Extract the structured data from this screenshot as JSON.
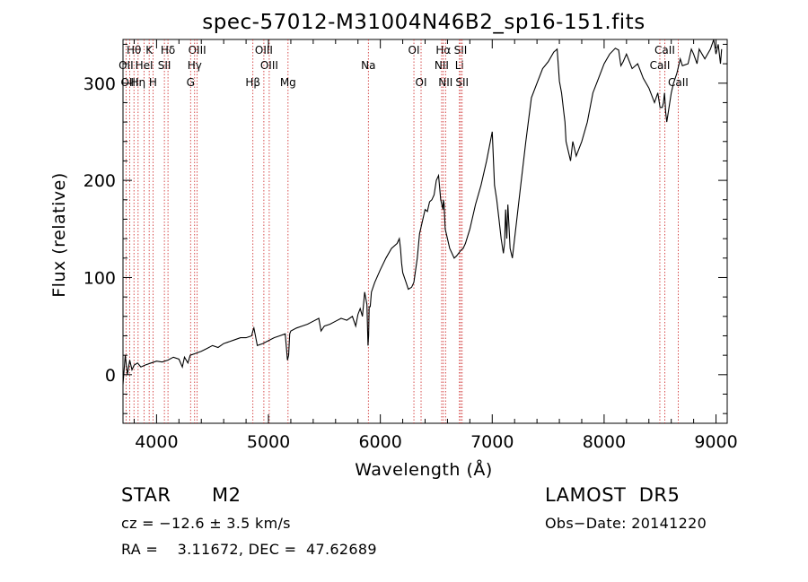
{
  "chart_data": {
    "type": "line",
    "title": "spec-57012-M31004N46B2_sp16-151.fits",
    "xlabel": "Wavelength (Å)",
    "ylabel": "Flux (relative)",
    "xlim": [
      3700,
      9100
    ],
    "ylim": [
      -50,
      345
    ],
    "xticks": [
      4000,
      5000,
      6000,
      7000,
      8000,
      9000
    ],
    "yticks": [
      0,
      100,
      200,
      300
    ],
    "grid": false,
    "series": [
      {
        "x": [
          3700,
          3720,
          3740,
          3760,
          3780,
          3800,
          3830,
          3860,
          3900,
          3950,
          4000,
          4050,
          4100,
          4150,
          4200,
          4230,
          4250,
          4280,
          4300,
          4350,
          4400,
          4450,
          4500,
          4550,
          4600,
          4650,
          4700,
          4750,
          4800,
          4850,
          4860,
          4870,
          4880,
          4900,
          4950,
          5000,
          5050,
          5100,
          5150,
          5170,
          5180,
          5190,
          5200,
          5250,
          5300,
          5350,
          5400,
          5450,
          5470,
          5500,
          5550,
          5600,
          5650,
          5700,
          5750,
          5780,
          5800,
          5820,
          5840,
          5860,
          5880,
          5890,
          5895,
          5900,
          5910,
          5920,
          5950,
          6000,
          6050,
          6100,
          6150,
          6170,
          6180,
          6190,
          6200,
          6230,
          6250,
          6280,
          6300,
          6330,
          6350,
          6380,
          6400,
          6420,
          6440,
          6460,
          6480,
          6500,
          6520,
          6540,
          6560,
          6563,
          6570,
          6580,
          6600,
          6620,
          6640,
          6660,
          6680,
          6700,
          6720,
          6740,
          6760,
          6800,
          6850,
          6900,
          6950,
          7000,
          7020,
          7040,
          7060,
          7080,
          7100,
          7110,
          7120,
          7130,
          7140,
          7160,
          7180,
          7200,
          7250,
          7300,
          7350,
          7400,
          7450,
          7500,
          7550,
          7580,
          7600,
          7620,
          7640,
          7650,
          7660,
          7680,
          7700,
          7720,
          7750,
          7800,
          7850,
          7900,
          7950,
          8000,
          8050,
          8100,
          8130,
          8150,
          8170,
          8200,
          8250,
          8300,
          8350,
          8400,
          8450,
          8480,
          8500,
          8520,
          8530,
          8540,
          8550,
          8560,
          8580,
          8600,
          8620,
          8650,
          8680,
          8700,
          8750,
          8780,
          8800,
          8830,
          8850,
          8900,
          8950,
          8980,
          9000,
          9020,
          9040,
          9050
        ],
        "y": [
          -10,
          20,
          0,
          15,
          5,
          10,
          12,
          8,
          10,
          12,
          14,
          13,
          15,
          18,
          16,
          8,
          18,
          12,
          20,
          22,
          24,
          27,
          30,
          28,
          32,
          34,
          36,
          38,
          38,
          40,
          45,
          48,
          42,
          30,
          32,
          35,
          38,
          40,
          42,
          15,
          20,
          42,
          45,
          48,
          50,
          52,
          55,
          58,
          45,
          50,
          52,
          55,
          58,
          56,
          60,
          50,
          62,
          68,
          60,
          85,
          72,
          30,
          40,
          70,
          70,
          85,
          95,
          108,
          120,
          130,
          135,
          140,
          130,
          115,
          105,
          95,
          88,
          90,
          95,
          120,
          145,
          160,
          170,
          168,
          178,
          180,
          185,
          200,
          205,
          180,
          170,
          180,
          175,
          150,
          140,
          130,
          125,
          120,
          122,
          125,
          128,
          130,
          135,
          150,
          175,
          195,
          220,
          250,
          195,
          180,
          160,
          140,
          125,
          135,
          170,
          140,
          175,
          130,
          120,
          140,
          190,
          240,
          285,
          300,
          315,
          322,
          332,
          335,
          302,
          290,
          270,
          260,
          240,
          230,
          220,
          240,
          225,
          240,
          260,
          290,
          305,
          320,
          330,
          336,
          334,
          318,
          322,
          330,
          315,
          320,
          305,
          295,
          280,
          290,
          275,
          275,
          280,
          290,
          270,
          260,
          275,
          290,
          300,
          310,
          325,
          318,
          320,
          335,
          330,
          320,
          335,
          325,
          335,
          350,
          330,
          340,
          320,
          335
        ]
      }
    ],
    "lines": [
      {
        "label": "Hθ",
        "wl": 3798,
        "row": 0
      },
      {
        "label": "OII",
        "wl": 3727,
        "row": 1
      },
      {
        "label": "OIII",
        "wl": 3760,
        "row": 2
      },
      {
        "label": "K",
        "wl": 3934,
        "row": 0
      },
      {
        "label": "HeI",
        "wl": 3889,
        "row": 1
      },
      {
        "label": "Hη",
        "wl": 3835,
        "row": 2
      },
      {
        "label": "H",
        "wl": 3968,
        "row": 2
      },
      {
        "label": "Hδ",
        "wl": 4102,
        "row": 0
      },
      {
        "label": "SII",
        "wl": 4070,
        "row": 1
      },
      {
        "label": "OIII",
        "wl": 4363,
        "row": 0
      },
      {
        "label": "Hγ",
        "wl": 4340,
        "row": 1
      },
      {
        "label": "G",
        "wl": 4304,
        "row": 2
      },
      {
        "label": "Hβ",
        "wl": 4861,
        "row": 2
      },
      {
        "label": "OIII",
        "wl": 4959,
        "row": 0
      },
      {
        "label": "OIII",
        "wl": 5007,
        "row": 1
      },
      {
        "label": "Mg",
        "wl": 5175,
        "row": 2
      },
      {
        "label": "Na",
        "wl": 5893,
        "row": 1
      },
      {
        "label": "OI",
        "wl": 6300,
        "row": 0
      },
      {
        "label": "OI",
        "wl": 6364,
        "row": 2
      },
      {
        "label": "Hα",
        "wl": 6563,
        "row": 0
      },
      {
        "label": "NII",
        "wl": 6548,
        "row": 1
      },
      {
        "label": "NII",
        "wl": 6583,
        "row": 2
      },
      {
        "label": "SII",
        "wl": 6717,
        "row": 0
      },
      {
        "label": "Li",
        "wl": 6707,
        "row": 1
      },
      {
        "label": "SII",
        "wl": 6731,
        "row": 2
      },
      {
        "label": "CaII",
        "wl": 8542,
        "row": 0
      },
      {
        "label": "CaII",
        "wl": 8498,
        "row": 1
      },
      {
        "label": "CaII",
        "wl": 8662,
        "row": 2
      }
    ]
  },
  "info": {
    "class": "STAR",
    "subclass": "M2",
    "survey": "LAMOST  DR5",
    "cz": "cz = −12.6 ± 3.5 km/s",
    "obs_date": "Obs−Date: 20141220",
    "radec": "RA =    3.11672, DEC =  47.62689"
  }
}
